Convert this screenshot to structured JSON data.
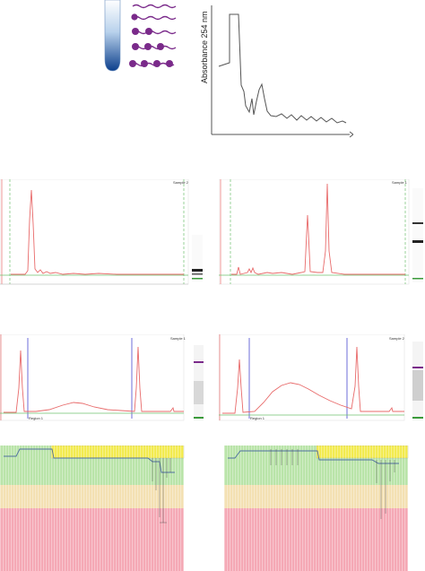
{
  "top_diagram": {
    "y_axis_label": "Absorbance 254 nm"
  },
  "panels": {
    "p1": {
      "sample_label": "Sample 2"
    },
    "p2": {
      "sample_label": "Sample 1"
    },
    "p3": {
      "sample_label": "Sample 1",
      "region_label": "Region 1"
    },
    "p4": {
      "sample_label": "Sample 2",
      "region_label": "Region 1"
    }
  },
  "colors": {
    "trace": "#e86a6a",
    "baseline": "#6fc06f",
    "region_line": "#4a4ad0",
    "molecule": "#7a2a8a",
    "green_band": "#b7e3a6",
    "tan_band": "#f3dfb0",
    "pink_band": "#f4a6b3",
    "yellow_band": "#f2ea4a",
    "marker_purple": "#7a2a8a",
    "marker_green": "#3a9a3a"
  }
}
